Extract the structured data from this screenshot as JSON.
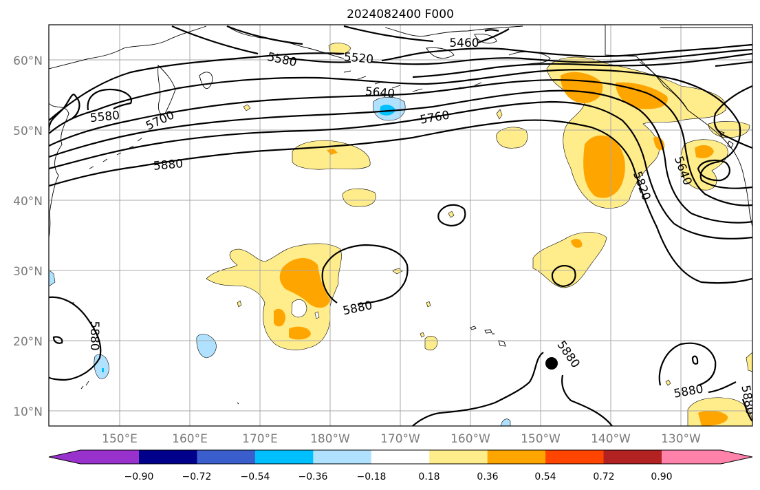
{
  "title": "2024082400 F000",
  "lat_labels": [
    "60°N",
    "50°N",
    "40°N",
    "30°N",
    "20°N",
    "10°N"
  ],
  "lon_labels": [
    "150°E",
    "160°E",
    "170°E",
    "180°W",
    "170°W",
    "160°W",
    "150°W",
    "140°W",
    "130°W"
  ],
  "colorbar": {
    "ticks": [
      "−0.90",
      "−0.72",
      "−0.54",
      "−0.36",
      "−0.18",
      "0.18",
      "0.36",
      "0.54",
      "0.72",
      "0.90"
    ],
    "colors": [
      "#9932cc",
      "#00008b",
      "#3a5fcd",
      "#00bfff",
      "#b0e2ff",
      "#ffffff",
      "#ffec8b",
      "#ffa500",
      "#ff4500",
      "#b22222",
      "#ff82ab"
    ]
  },
  "contour_labels": [
    "5460",
    "5520",
    "5580",
    "5640",
    "5700",
    "5760",
    "5580",
    "5880",
    "5640",
    "5820",
    "5880",
    "5880",
    "5880",
    "5880",
    "5880"
  ],
  "colors": {
    "yellow": "#ffec8b",
    "orange": "#ffa500",
    "lightblue": "#b0e2ff",
    "blue": "#00bfff"
  }
}
